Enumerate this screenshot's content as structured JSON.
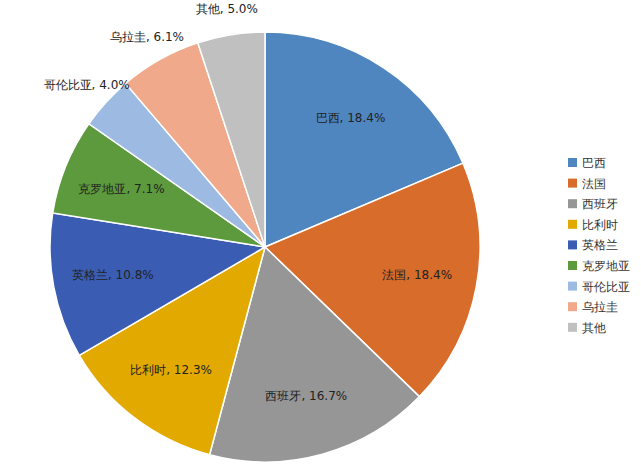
{
  "chart_data": {
    "type": "pie",
    "categories": [
      "巴西",
      "法国",
      "西班牙",
      "比利时",
      "英格兰",
      "克罗地亚",
      "哥伦比亚",
      "乌拉圭",
      "其他"
    ],
    "values": [
      18.4,
      18.4,
      16.7,
      12.3,
      10.8,
      7.1,
      4.0,
      6.1,
      5.0
    ],
    "value_labels": [
      "巴西, 18.4%",
      "法国, 18.4%",
      "西班牙, 16.7%",
      "比利时, 12.3%",
      "英格兰, 10.8%",
      "克罗地亚, 7.1%",
      "哥伦比亚, 4.0%",
      "乌拉圭, 6.1%",
      "其他, 5.0%"
    ],
    "colors": [
      "#4f86c0",
      "#d86c2b",
      "#969696",
      "#e2a900",
      "#3a5db3",
      "#5c9a3d",
      "#9dbbe2",
      "#f0a98a",
      "#c0c0c0"
    ],
    "data_labels": true,
    "legend": "right"
  }
}
